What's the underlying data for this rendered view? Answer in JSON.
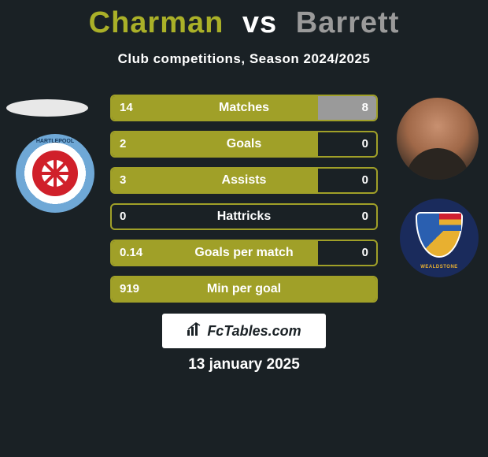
{
  "header": {
    "player1": "Charman",
    "vs": "vs",
    "player2": "Barrett",
    "player1_color": "#aab028",
    "player2_color": "#9a9a9a",
    "subtitle": "Club competitions, Season 2024/2025"
  },
  "stats": {
    "bar_color_left": "#a0a028",
    "bar_color_right": "#9a9a9a",
    "border_color": "#a0a028",
    "background": "#1a2125",
    "rows": [
      {
        "label": "Matches",
        "left_val": "14",
        "right_val": "8",
        "left_pct": 78,
        "right_pct": 22
      },
      {
        "label": "Goals",
        "left_val": "2",
        "right_val": "0",
        "left_pct": 78,
        "right_pct": 0
      },
      {
        "label": "Assists",
        "left_val": "3",
        "right_val": "0",
        "left_pct": 78,
        "right_pct": 0
      },
      {
        "label": "Hattricks",
        "left_val": "0",
        "right_val": "0",
        "left_pct": 0,
        "right_pct": 0
      },
      {
        "label": "Goals per match",
        "left_val": "0.14",
        "right_val": "0",
        "left_pct": 78,
        "right_pct": 0
      },
      {
        "label": "Min per goal",
        "left_val": "919",
        "right_val": "",
        "left_pct": 100,
        "right_pct": 0
      }
    ]
  },
  "clubs": {
    "left_name": "Hartlepool United FC",
    "left_text_top": "HARTLEPOOL",
    "right_name": "Wealdstone",
    "right_ribbon": "WEALDSTONE"
  },
  "footer": {
    "site_label": "FcTables.com",
    "date": "13 january 2025"
  }
}
